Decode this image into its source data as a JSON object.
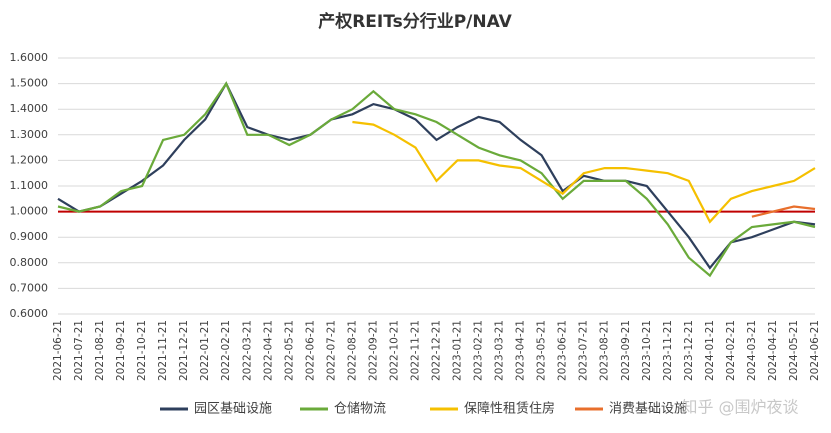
{
  "chart_data": {
    "type": "line",
    "title": "产权REITs分行业P/NAV",
    "categories": [
      "2021-06-21",
      "2021-07-21",
      "2021-08-21",
      "2021-09-21",
      "2021-10-21",
      "2021-11-21",
      "2021-12-21",
      "2022-01-21",
      "2022-02-21",
      "2022-03-21",
      "2022-04-21",
      "2022-05-21",
      "2022-06-21",
      "2022-07-21",
      "2022-08-21",
      "2022-09-21",
      "2022-10-21",
      "2022-11-21",
      "2022-12-21",
      "2023-01-21",
      "2023-02-21",
      "2023-03-21",
      "2023-04-21",
      "2023-05-21",
      "2023-06-21",
      "2023-07-21",
      "2023-08-21",
      "2023-09-21",
      "2023-10-21",
      "2023-11-21",
      "2023-12-21",
      "2024-01-21",
      "2024-02-21",
      "2024-03-21",
      "2024-04-21",
      "2024-05-21",
      "2024-06-21"
    ],
    "series": [
      {
        "name": "园区基础设施",
        "color": "#2e3f5c",
        "values": [
          1.05,
          1.0,
          1.02,
          1.07,
          1.12,
          1.18,
          1.28,
          1.36,
          1.5,
          1.33,
          1.3,
          1.28,
          1.3,
          1.36,
          1.38,
          1.42,
          1.4,
          1.36,
          1.28,
          1.33,
          1.37,
          1.35,
          1.28,
          1.22,
          1.08,
          1.14,
          1.12,
          1.12,
          1.1,
          1.0,
          0.9,
          0.78,
          0.88,
          0.9,
          0.93,
          0.96,
          0.95
        ]
      },
      {
        "name": "仓储物流",
        "color": "#6aaa3a",
        "values": [
          1.02,
          1.0,
          1.02,
          1.08,
          1.1,
          1.28,
          1.3,
          1.38,
          1.5,
          1.3,
          1.3,
          1.26,
          1.3,
          1.36,
          1.4,
          1.47,
          1.4,
          1.38,
          1.35,
          1.3,
          1.25,
          1.22,
          1.2,
          1.15,
          1.05,
          1.12,
          1.12,
          1.12,
          1.05,
          0.95,
          0.82,
          0.75,
          0.88,
          0.94,
          0.95,
          0.96,
          0.94
        ]
      },
      {
        "name": "保障性租赁住房",
        "color": "#f5c000",
        "values": [
          null,
          null,
          null,
          null,
          null,
          null,
          null,
          null,
          null,
          null,
          null,
          null,
          null,
          null,
          1.35,
          1.34,
          1.3,
          1.25,
          1.12,
          1.2,
          1.2,
          1.18,
          1.17,
          1.12,
          1.07,
          1.15,
          1.17,
          1.17,
          1.16,
          1.15,
          1.12,
          0.96,
          1.05,
          1.08,
          1.1,
          1.12,
          1.17
        ]
      },
      {
        "name": "消费基础设施",
        "color": "#e86f2c",
        "values": [
          null,
          null,
          null,
          null,
          null,
          null,
          null,
          null,
          null,
          null,
          null,
          null,
          null,
          null,
          null,
          null,
          null,
          null,
          null,
          null,
          null,
          null,
          null,
          null,
          null,
          null,
          null,
          null,
          null,
          null,
          null,
          null,
          null,
          0.98,
          1.0,
          1.02,
          1.01
        ]
      }
    ],
    "ylim": [
      0.6,
      1.6
    ],
    "yticks": [
      {
        "value": 0.6,
        "label": "0.6000"
      },
      {
        "value": 0.7,
        "label": "0.7000"
      },
      {
        "value": 0.8,
        "label": "0.8000"
      },
      {
        "value": 0.9,
        "label": "0.9000"
      },
      {
        "value": 1.0,
        "label": "1.0000"
      },
      {
        "value": 1.1,
        "label": "1.1000"
      },
      {
        "value": 1.2,
        "label": "1.2000"
      },
      {
        "value": 1.3,
        "label": "1.3000"
      },
      {
        "value": 1.4,
        "label": "1.4000"
      },
      {
        "value": 1.5,
        "label": "1.5000"
      },
      {
        "value": 1.6,
        "label": "1.6000"
      }
    ],
    "grid": true,
    "hline": {
      "value": 1.0,
      "color": "#c00000"
    },
    "legend": "bottom",
    "watermark": "知乎 @围炉夜谈"
  }
}
